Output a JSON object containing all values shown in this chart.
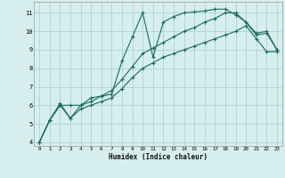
{
  "xlabel": "Humidex (Indice chaleur)",
  "background_color": "#d6eeee",
  "grid_color": "#aacccc",
  "line_color": "#1a6b5a",
  "xlim": [
    -0.5,
    23.5
  ],
  "ylim": [
    3.8,
    11.6
  ],
  "yticks": [
    4,
    5,
    6,
    7,
    8,
    9,
    10,
    11
  ],
  "xticks": [
    0,
    1,
    2,
    3,
    4,
    5,
    6,
    7,
    8,
    9,
    10,
    11,
    12,
    13,
    14,
    15,
    16,
    17,
    18,
    19,
    20,
    21,
    22,
    23
  ],
  "line1_x": [
    0,
    1,
    2,
    3,
    4,
    5,
    6,
    7,
    8,
    9,
    10,
    11,
    12,
    13,
    14,
    15,
    16,
    17,
    18,
    19,
    20,
    21,
    22,
    23
  ],
  "line1_y": [
    4.0,
    5.2,
    6.0,
    6.0,
    6.0,
    6.4,
    6.5,
    6.6,
    8.4,
    9.7,
    11.0,
    8.6,
    10.5,
    10.8,
    11.0,
    11.05,
    11.1,
    11.2,
    11.2,
    10.9,
    10.5,
    9.9,
    10.0,
    9.0
  ],
  "line2_x": [
    0,
    1,
    2,
    3,
    4,
    5,
    6,
    7,
    8,
    9,
    10,
    11,
    12,
    13,
    14,
    15,
    16,
    17,
    18,
    19,
    20,
    21,
    22,
    23
  ],
  "line2_y": [
    4.0,
    5.2,
    6.1,
    5.3,
    6.0,
    6.2,
    6.5,
    6.8,
    7.4,
    8.1,
    8.8,
    9.1,
    9.4,
    9.7,
    10.0,
    10.2,
    10.5,
    10.7,
    11.0,
    11.0,
    10.5,
    9.8,
    9.9,
    9.0
  ],
  "line3_x": [
    0,
    1,
    2,
    3,
    4,
    5,
    6,
    7,
    8,
    9,
    10,
    11,
    12,
    13,
    14,
    15,
    16,
    17,
    18,
    19,
    20,
    21,
    22,
    23
  ],
  "line3_y": [
    4.0,
    5.2,
    6.0,
    5.3,
    5.8,
    6.0,
    6.2,
    6.4,
    6.9,
    7.5,
    8.0,
    8.3,
    8.6,
    8.8,
    9.0,
    9.2,
    9.4,
    9.6,
    9.8,
    10.0,
    10.3,
    9.6,
    8.9,
    8.9
  ]
}
